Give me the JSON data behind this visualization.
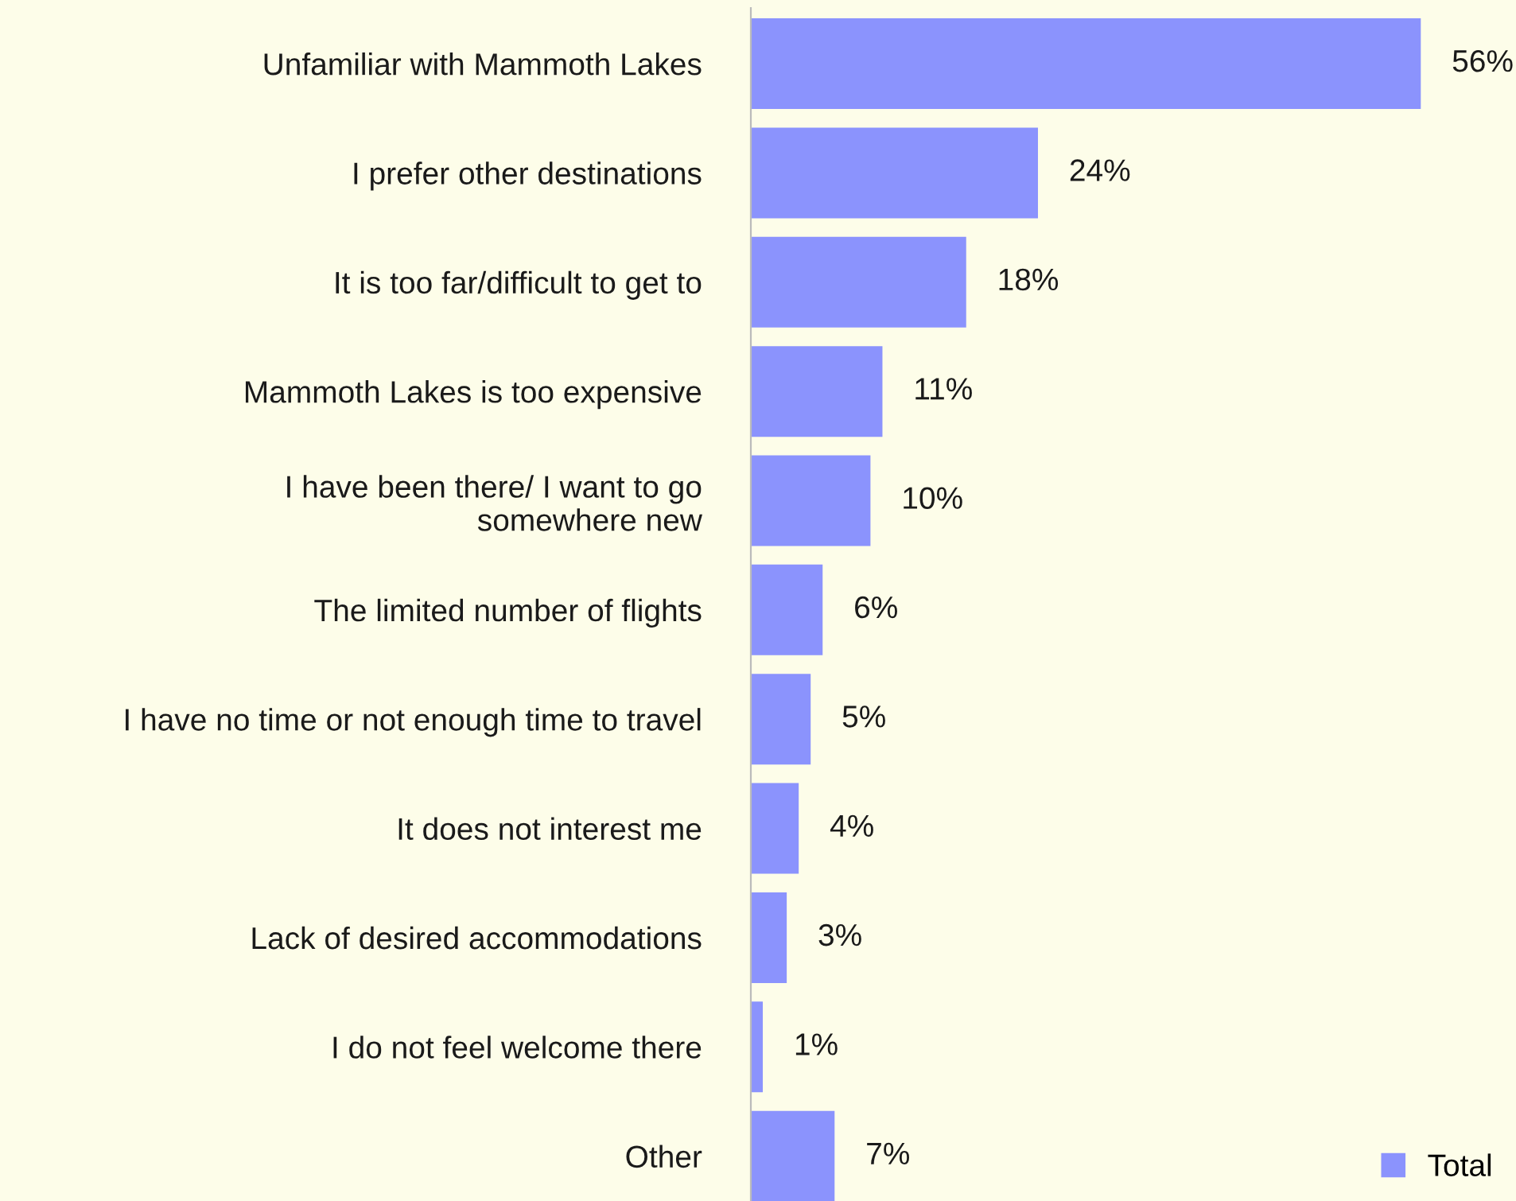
{
  "chart_data": {
    "type": "bar",
    "orientation": "horizontal",
    "categories": [
      "Unfamiliar with Mammoth Lakes",
      "I prefer other destinations",
      "It is too far/difficult to get to",
      "Mammoth Lakes is too expensive",
      "I have been there/ I want to go\nsomewhere new",
      "The limited number of flights",
      "I have no time or not enough time to travel",
      "It does not interest me",
      "Lack of desired accommodations",
      "I do not feel welcome there",
      "Other"
    ],
    "series": [
      {
        "name": "Total",
        "color": "#8b93fd",
        "values": [
          56,
          24,
          18,
          11,
          10,
          6,
          5,
          4,
          3,
          1,
          7
        ],
        "value_labels": [
          "56%",
          "24%",
          "18%",
          "11%",
          "10%",
          "6%",
          "5%",
          "4%",
          "3%",
          "1%",
          "7%"
        ]
      }
    ],
    "legend": "bottom right",
    "grid": false
  }
}
